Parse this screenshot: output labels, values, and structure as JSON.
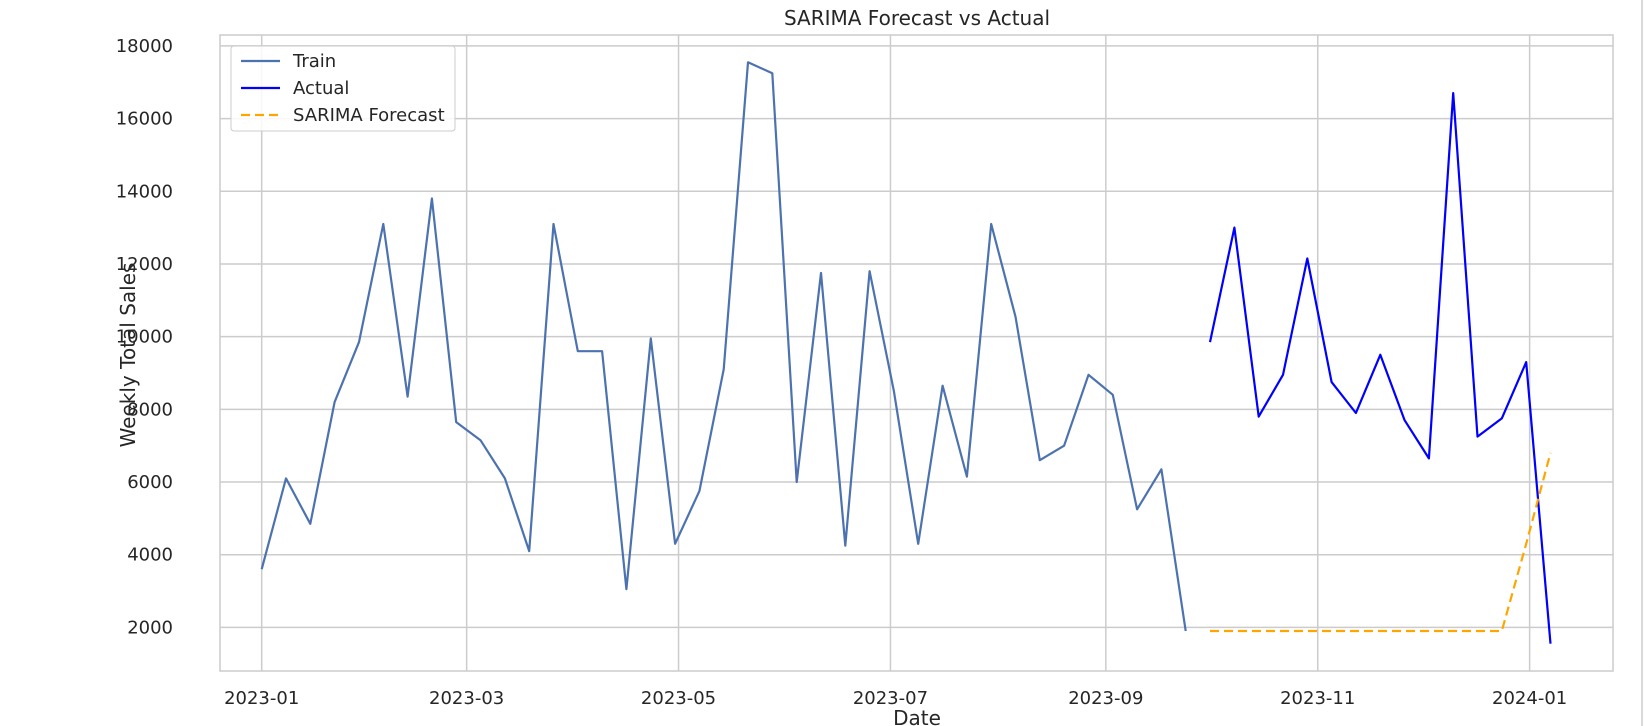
{
  "chart_data": {
    "type": "line",
    "title": "SARIMA Forecast vs Actual",
    "xlabel": "Date",
    "ylabel": "Weekly Total Sales",
    "xlim": [
      "2022-12-20",
      "2024-01-25"
    ],
    "ylim": [
      800,
      18300
    ],
    "x_ticks": [
      "2023-01",
      "2023-03",
      "2023-05",
      "2023-07",
      "2023-09",
      "2023-11",
      "2024-01"
    ],
    "y_ticks": [
      2000,
      4000,
      6000,
      8000,
      10000,
      12000,
      14000,
      16000,
      18000
    ],
    "grid": true,
    "legend_position": "top-left",
    "series": [
      {
        "name": "Train",
        "color": "#4c72b0",
        "style": "solid",
        "x": [
          "2023-01-01",
          "2023-01-08",
          "2023-01-15",
          "2023-01-22",
          "2023-01-29",
          "2023-02-05",
          "2023-02-12",
          "2023-02-19",
          "2023-02-26",
          "2023-03-05",
          "2023-03-12",
          "2023-03-19",
          "2023-03-26",
          "2023-04-02",
          "2023-04-09",
          "2023-04-16",
          "2023-04-23",
          "2023-04-30",
          "2023-05-07",
          "2023-05-14",
          "2023-05-21",
          "2023-05-28",
          "2023-06-04",
          "2023-06-11",
          "2023-06-18",
          "2023-06-25",
          "2023-07-02",
          "2023-07-09",
          "2023-07-16",
          "2023-07-23",
          "2023-07-30",
          "2023-08-06",
          "2023-08-13",
          "2023-08-20",
          "2023-08-27",
          "2023-09-03",
          "2023-09-10",
          "2023-09-17",
          "2023-09-24"
        ],
        "values": [
          3600,
          6100,
          4850,
          8200,
          9850,
          13100,
          8350,
          13800,
          7650,
          7150,
          6100,
          4100,
          13100,
          9600,
          9600,
          3050,
          9950,
          4300,
          5750,
          9100,
          17550,
          17250,
          6000,
          11750,
          4250,
          11800,
          8500,
          4300,
          8650,
          6150,
          13100,
          10550,
          6600,
          7000,
          8950,
          8400,
          5250,
          6350,
          1900
        ]
      },
      {
        "name": "Actual",
        "color": "#0000ff",
        "style": "solid",
        "x": [
          "2023-10-01",
          "2023-10-08",
          "2023-10-15",
          "2023-10-22",
          "2023-10-29",
          "2023-11-05",
          "2023-11-12",
          "2023-11-19",
          "2023-11-26",
          "2023-12-03",
          "2023-12-10",
          "2023-12-17",
          "2023-12-24",
          "2023-12-31",
          "2024-01-07"
        ],
        "values": [
          9850,
          13000,
          7800,
          8950,
          12150,
          8750,
          7900,
          9500,
          7700,
          6650,
          16700,
          7250,
          7750,
          9300,
          1550
        ]
      },
      {
        "name": "SARIMA Forecast",
        "color": "#ffa500",
        "style": "dashed",
        "x": [
          "2023-10-01",
          "2023-10-08",
          "2023-10-15",
          "2023-10-22",
          "2023-10-29",
          "2023-11-05",
          "2023-11-12",
          "2023-11-19",
          "2023-11-26",
          "2023-12-03",
          "2023-12-10",
          "2023-12-17",
          "2023-12-24",
          "2023-12-31",
          "2024-01-07"
        ],
        "values": [
          1900,
          1900,
          1900,
          1900,
          1900,
          1900,
          1900,
          1900,
          1900,
          1900,
          1900,
          1900,
          1900,
          4300,
          6800
        ]
      }
    ]
  }
}
